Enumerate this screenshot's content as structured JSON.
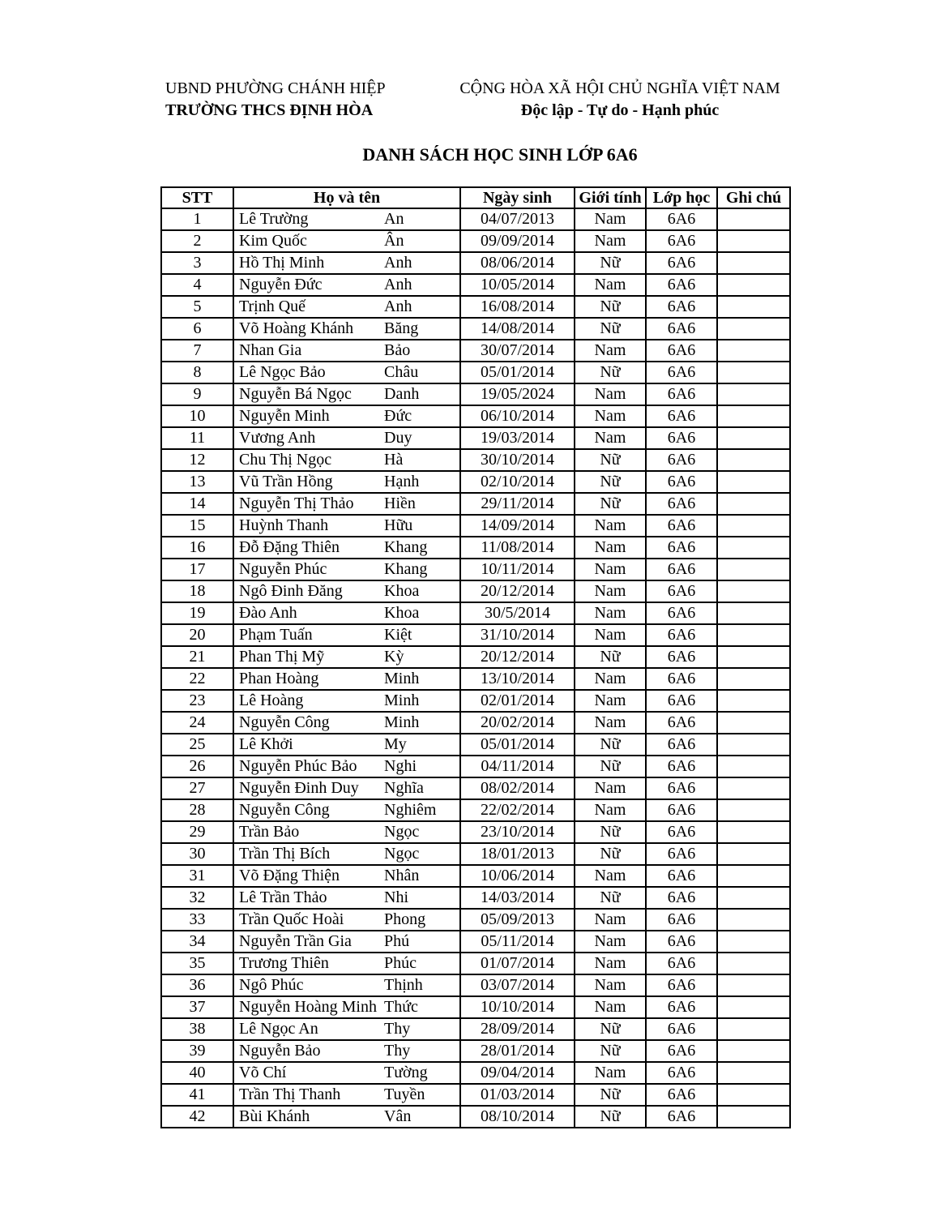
{
  "document": {
    "header_left": {
      "line1": "UBND PHƯỜNG CHÁNH HIỆP",
      "line2": "TRƯỜNG THCS ĐỊNH HÒA"
    },
    "header_right": {
      "line1": "CỘNG HÒA XÃ HỘI CHỦ NGHĨA VIỆT NAM",
      "line2": "Độc lập - Tự do - Hạnh phúc"
    },
    "title": "DANH SÁCH HỌC SINH LỚP 6A6"
  },
  "table": {
    "columns": [
      "STT",
      "Họ và tên",
      "Ngày sinh",
      "Giới tính",
      "Lớp học",
      "Ghi chú"
    ],
    "rows": [
      {
        "stt": "1",
        "ho": "Lê Trường",
        "ten": "An",
        "ngay_sinh": "04/07/2013",
        "gioi_tinh": "Nam",
        "lop_hoc": "6A6",
        "ghi_chu": ""
      },
      {
        "stt": "2",
        "ho": "Kim Quốc",
        "ten": "Ân",
        "ngay_sinh": "09/09/2014",
        "gioi_tinh": "Nam",
        "lop_hoc": "6A6",
        "ghi_chu": ""
      },
      {
        "stt": "3",
        "ho": "Hồ Thị Minh",
        "ten": "Anh",
        "ngay_sinh": "08/06/2014",
        "gioi_tinh": "Nữ",
        "lop_hoc": "6A6",
        "ghi_chu": ""
      },
      {
        "stt": "4",
        "ho": "Nguyễn Đức",
        "ten": "Anh",
        "ngay_sinh": "10/05/2014",
        "gioi_tinh": "Nam",
        "lop_hoc": "6A6",
        "ghi_chu": ""
      },
      {
        "stt": "5",
        "ho": "Trịnh Quế",
        "ten": "Anh",
        "ngay_sinh": "16/08/2014",
        "gioi_tinh": "Nữ",
        "lop_hoc": "6A6",
        "ghi_chu": ""
      },
      {
        "stt": "6",
        "ho": "Võ Hoàng Khánh",
        "ten": "Băng",
        "ngay_sinh": "14/08/2014",
        "gioi_tinh": "Nữ",
        "lop_hoc": "6A6",
        "ghi_chu": ""
      },
      {
        "stt": "7",
        "ho": "Nhan Gia",
        "ten": "Bảo",
        "ngay_sinh": "30/07/2014",
        "gioi_tinh": "Nam",
        "lop_hoc": "6A6",
        "ghi_chu": ""
      },
      {
        "stt": "8",
        "ho": "Lê Ngọc Bảo",
        "ten": "Châu",
        "ngay_sinh": "05/01/2014",
        "gioi_tinh": "Nữ",
        "lop_hoc": "6A6",
        "ghi_chu": ""
      },
      {
        "stt": "9",
        "ho": "Nguyễn Bá Ngọc",
        "ten": "Danh",
        "ngay_sinh": "19/05/2024",
        "gioi_tinh": "Nam",
        "lop_hoc": "6A6",
        "ghi_chu": ""
      },
      {
        "stt": "10",
        "ho": "Nguyễn Minh",
        "ten": "Đức",
        "ngay_sinh": "06/10/2014",
        "gioi_tinh": "Nam",
        "lop_hoc": "6A6",
        "ghi_chu": ""
      },
      {
        "stt": "11",
        "ho": "Vương Anh",
        "ten": "Duy",
        "ngay_sinh": "19/03/2014",
        "gioi_tinh": "Nam",
        "lop_hoc": "6A6",
        "ghi_chu": ""
      },
      {
        "stt": "12",
        "ho": "Chu Thị Ngọc",
        "ten": "Hà",
        "ngay_sinh": "30/10/2014",
        "gioi_tinh": "Nữ",
        "lop_hoc": "6A6",
        "ghi_chu": ""
      },
      {
        "stt": "13",
        "ho": "Vũ Trần Hồng",
        "ten": "Hạnh",
        "ngay_sinh": "02/10/2014",
        "gioi_tinh": "Nữ",
        "lop_hoc": "6A6",
        "ghi_chu": ""
      },
      {
        "stt": "14",
        "ho": "Nguyễn Thị Thảo",
        "ten": "Hiền",
        "ngay_sinh": "29/11/2014",
        "gioi_tinh": "Nữ",
        "lop_hoc": "6A6",
        "ghi_chu": ""
      },
      {
        "stt": "15",
        "ho": "Huỳnh Thanh",
        "ten": "Hữu",
        "ngay_sinh": "14/09/2014",
        "gioi_tinh": "Nam",
        "lop_hoc": "6A6",
        "ghi_chu": ""
      },
      {
        "stt": "16",
        "ho": "Đỗ Đặng Thiên",
        "ten": "Khang",
        "ngay_sinh": "11/08/2014",
        "gioi_tinh": "Nam",
        "lop_hoc": "6A6",
        "ghi_chu": ""
      },
      {
        "stt": "17",
        "ho": "Nguyễn Phúc",
        "ten": "Khang",
        "ngay_sinh": "10/11/2014",
        "gioi_tinh": "Nam",
        "lop_hoc": "6A6",
        "ghi_chu": ""
      },
      {
        "stt": "18",
        "ho": "Ngô Đinh Đăng",
        "ten": "Khoa",
        "ngay_sinh": "20/12/2014",
        "gioi_tinh": "Nam",
        "lop_hoc": "6A6",
        "ghi_chu": ""
      },
      {
        "stt": "19",
        "ho": "Đào Anh",
        "ten": "Khoa",
        "ngay_sinh": "30/5/2014",
        "gioi_tinh": "Nam",
        "lop_hoc": "6A6",
        "ghi_chu": ""
      },
      {
        "stt": "20",
        "ho": "Phạm Tuấn",
        "ten": "Kiệt",
        "ngay_sinh": "31/10/2014",
        "gioi_tinh": "Nam",
        "lop_hoc": "6A6",
        "ghi_chu": ""
      },
      {
        "stt": "21",
        "ho": "Phan Thị Mỹ",
        "ten": "Kỳ",
        "ngay_sinh": "20/12/2014",
        "gioi_tinh": "Nữ",
        "lop_hoc": "6A6",
        "ghi_chu": ""
      },
      {
        "stt": "22",
        "ho": "Phan Hoàng",
        "ten": "Minh",
        "ngay_sinh": "13/10/2014",
        "gioi_tinh": "Nam",
        "lop_hoc": "6A6",
        "ghi_chu": ""
      },
      {
        "stt": "23",
        "ho": "Lê Hoàng",
        "ten": "Minh",
        "ngay_sinh": "02/01/2014",
        "gioi_tinh": "Nam",
        "lop_hoc": "6A6",
        "ghi_chu": ""
      },
      {
        "stt": "24",
        "ho": "Nguyễn Công",
        "ten": "Minh",
        "ngay_sinh": "20/02/2014",
        "gioi_tinh": "Nam",
        "lop_hoc": "6A6",
        "ghi_chu": ""
      },
      {
        "stt": "25",
        "ho": "Lê Khởi",
        "ten": "My",
        "ngay_sinh": "05/01/2014",
        "gioi_tinh": "Nữ",
        "lop_hoc": "6A6",
        "ghi_chu": ""
      },
      {
        "stt": "26",
        "ho": "Nguyễn Phúc Bảo",
        "ten": "Nghi",
        "ngay_sinh": "04/11/2014",
        "gioi_tinh": "Nữ",
        "lop_hoc": "6A6",
        "ghi_chu": ""
      },
      {
        "stt": "27",
        "ho": "Nguyễn Đinh Duy",
        "ten": "Nghĩa",
        "ngay_sinh": "08/02/2014",
        "gioi_tinh": "Nam",
        "lop_hoc": "6A6",
        "ghi_chu": ""
      },
      {
        "stt": "28",
        "ho": "Nguyễn Công",
        "ten": "Nghiêm",
        "ngay_sinh": "22/02/2014",
        "gioi_tinh": "Nam",
        "lop_hoc": "6A6",
        "ghi_chu": ""
      },
      {
        "stt": "29",
        "ho": "Trần Bảo",
        "ten": "Ngọc",
        "ngay_sinh": "23/10/2014",
        "gioi_tinh": "Nữ",
        "lop_hoc": "6A6",
        "ghi_chu": ""
      },
      {
        "stt": "30",
        "ho": "Trần Thị Bích",
        "ten": "Ngọc",
        "ngay_sinh": "18/01/2013",
        "gioi_tinh": "Nữ",
        "lop_hoc": "6A6",
        "ghi_chu": ""
      },
      {
        "stt": "31",
        "ho": "Võ Đặng Thiện",
        "ten": "Nhân",
        "ngay_sinh": "10/06/2014",
        "gioi_tinh": "Nam",
        "lop_hoc": "6A6",
        "ghi_chu": ""
      },
      {
        "stt": "32",
        "ho": "Lê Trần Thảo",
        "ten": "Nhi",
        "ngay_sinh": "14/03/2014",
        "gioi_tinh": "Nữ",
        "lop_hoc": "6A6",
        "ghi_chu": ""
      },
      {
        "stt": "33",
        "ho": "Trần Quốc Hoài",
        "ten": "Phong",
        "ngay_sinh": "05/09/2013",
        "gioi_tinh": "Nam",
        "lop_hoc": "6A6",
        "ghi_chu": ""
      },
      {
        "stt": "34",
        "ho": "Nguyễn Trần Gia",
        "ten": "Phú",
        "ngay_sinh": "05/11/2014",
        "gioi_tinh": "Nam",
        "lop_hoc": "6A6",
        "ghi_chu": ""
      },
      {
        "stt": "35",
        "ho": "Trương Thiên",
        "ten": "Phúc",
        "ngay_sinh": "01/07/2014",
        "gioi_tinh": "Nam",
        "lop_hoc": "6A6",
        "ghi_chu": ""
      },
      {
        "stt": "36",
        "ho": "Ngô Phúc",
        "ten": "Thịnh",
        "ngay_sinh": "03/07/2014",
        "gioi_tinh": "Nam",
        "lop_hoc": "6A6",
        "ghi_chu": ""
      },
      {
        "stt": "37",
        "ho": "Nguyễn Hoàng Minh",
        "ten": "Thức",
        "ngay_sinh": "10/10/2014",
        "gioi_tinh": "Nam",
        "lop_hoc": "6A6",
        "ghi_chu": ""
      },
      {
        "stt": "38",
        "ho": "Lê Ngọc An",
        "ten": "Thy",
        "ngay_sinh": "28/09/2014",
        "gioi_tinh": "Nữ",
        "lop_hoc": "6A6",
        "ghi_chu": ""
      },
      {
        "stt": "39",
        "ho": "Nguyễn Bảo",
        "ten": "Thy",
        "ngay_sinh": "28/01/2014",
        "gioi_tinh": "Nữ",
        "lop_hoc": "6A6",
        "ghi_chu": ""
      },
      {
        "stt": "40",
        "ho": "Võ Chí",
        "ten": "Tường",
        "ngay_sinh": "09/04/2014",
        "gioi_tinh": "Nam",
        "lop_hoc": "6A6",
        "ghi_chu": ""
      },
      {
        "stt": "41",
        "ho": "Trần Thị Thanh",
        "ten": "Tuyền",
        "ngay_sinh": "01/03/2014",
        "gioi_tinh": "Nữ",
        "lop_hoc": "6A6",
        "ghi_chu": ""
      },
      {
        "stt": "42",
        "ho": "Bùi Khánh",
        "ten": "Vân",
        "ngay_sinh": "08/10/2014",
        "gioi_tinh": "Nữ",
        "lop_hoc": "6A6",
        "ghi_chu": ""
      }
    ]
  },
  "colors": {
    "text": "#000000",
    "background": "#ffffff",
    "border": "#000000"
  }
}
